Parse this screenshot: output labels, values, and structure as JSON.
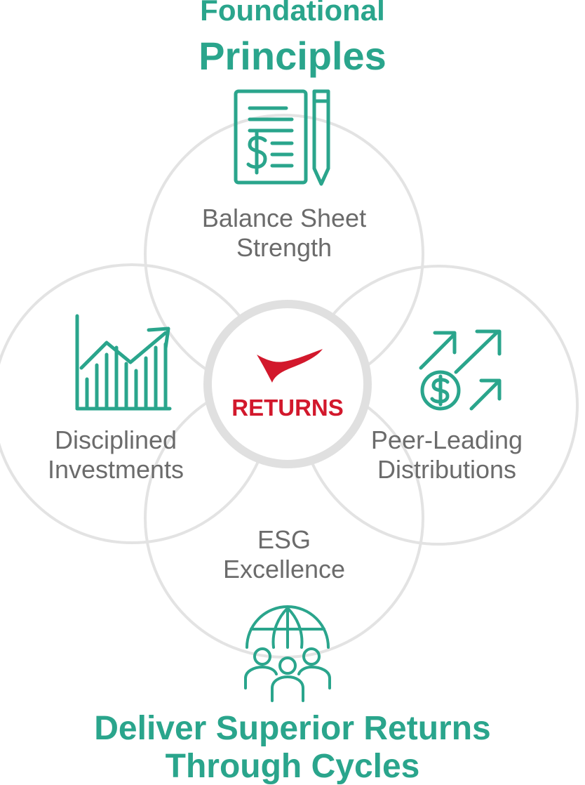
{
  "title": {
    "line1": "Foundational",
    "line2": "Principles"
  },
  "center": {
    "label": "RETURNS"
  },
  "principles": {
    "top": {
      "line1": "Balance Sheet",
      "line2": "Strength",
      "icon": "financial-document-pencil-icon"
    },
    "left": {
      "line1": "Disciplined",
      "line2": "Investments",
      "icon": "bar-chart-growth-icon"
    },
    "right": {
      "line1": "Peer-Leading",
      "line2": "Distributions",
      "icon": "dollar-arrows-icon"
    },
    "bottom": {
      "line1": "ESG",
      "line2": "Excellence",
      "icon": "globe-people-icon"
    }
  },
  "footer": {
    "line1": "Deliver Superior Returns",
    "line2": "Through Cycles"
  },
  "colors": {
    "accent": "#2aa58c",
    "brand_red": "#d2182c",
    "circle_outline": "#e2e2e2",
    "label_text": "#6b6b6b"
  }
}
